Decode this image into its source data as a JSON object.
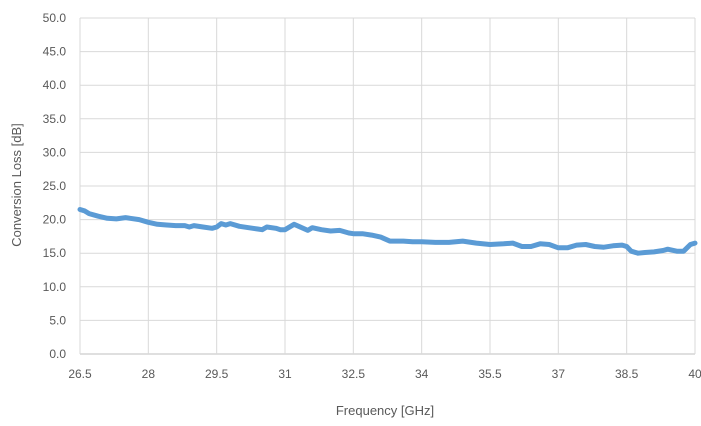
{
  "chart_data": {
    "type": "line",
    "title": "",
    "xlabel": "Frequency [GHz]",
    "ylabel": "Conversion Loss [dB]",
    "xlim": [
      26.5,
      40
    ],
    "ylim": [
      0,
      50
    ],
    "x_ticks": [
      "26.5",
      "28",
      "29.5",
      "31",
      "32.5",
      "34",
      "35.5",
      "37",
      "38.5",
      "40"
    ],
    "x_tick_values": [
      26.5,
      28,
      29.5,
      31,
      32.5,
      34,
      35.5,
      37,
      38.5,
      40
    ],
    "y_ticks": [
      "0.0",
      "5.0",
      "10.0",
      "15.0",
      "20.0",
      "25.0",
      "30.0",
      "35.0",
      "40.0",
      "45.0",
      "50.0"
    ],
    "y_tick_values": [
      0,
      5,
      10,
      15,
      20,
      25,
      30,
      35,
      40,
      45,
      50
    ],
    "grid": true,
    "legend": "none",
    "series_color": "#5b9bd5",
    "series": [
      {
        "name": "",
        "x": [
          26.5,
          26.6,
          26.7,
          26.9,
          27.1,
          27.3,
          27.5,
          27.6,
          27.8,
          28.0,
          28.2,
          28.4,
          28.6,
          28.8,
          28.9,
          29.0,
          29.2,
          29.4,
          29.5,
          29.6,
          29.7,
          29.8,
          30.0,
          30.2,
          30.4,
          30.5,
          30.6,
          30.8,
          30.9,
          31.0,
          31.2,
          31.3,
          31.5,
          31.6,
          31.8,
          32.0,
          32.2,
          32.4,
          32.5,
          32.7,
          32.9,
          33.1,
          33.3,
          33.6,
          33.8,
          34.0,
          34.3,
          34.6,
          34.9,
          35.2,
          35.5,
          35.8,
          36.0,
          36.2,
          36.4,
          36.6,
          36.8,
          37.0,
          37.2,
          37.4,
          37.6,
          37.8,
          38.0,
          38.2,
          38.4,
          38.5,
          38.6,
          38.75,
          38.9,
          39.1,
          39.3,
          39.4,
          39.6,
          39.75,
          39.9,
          40.0
        ],
        "y": [
          21.5,
          21.3,
          20.9,
          20.5,
          20.2,
          20.1,
          20.3,
          20.2,
          20.0,
          19.6,
          19.3,
          19.2,
          19.1,
          19.1,
          18.9,
          19.1,
          18.9,
          18.7,
          18.9,
          19.4,
          19.2,
          19.4,
          19.0,
          18.8,
          18.6,
          18.5,
          18.9,
          18.7,
          18.5,
          18.5,
          19.3,
          19.0,
          18.4,
          18.8,
          18.5,
          18.3,
          18.4,
          18.0,
          17.9,
          17.9,
          17.7,
          17.4,
          16.8,
          16.8,
          16.7,
          16.7,
          16.6,
          16.6,
          16.8,
          16.5,
          16.3,
          16.4,
          16.5,
          16.0,
          16.0,
          16.4,
          16.3,
          15.8,
          15.8,
          16.2,
          16.3,
          16.0,
          15.9,
          16.1,
          16.2,
          16.0,
          15.3,
          15.0,
          15.1,
          15.2,
          15.4,
          15.6,
          15.3,
          15.3,
          16.3,
          16.5
        ]
      }
    ]
  }
}
